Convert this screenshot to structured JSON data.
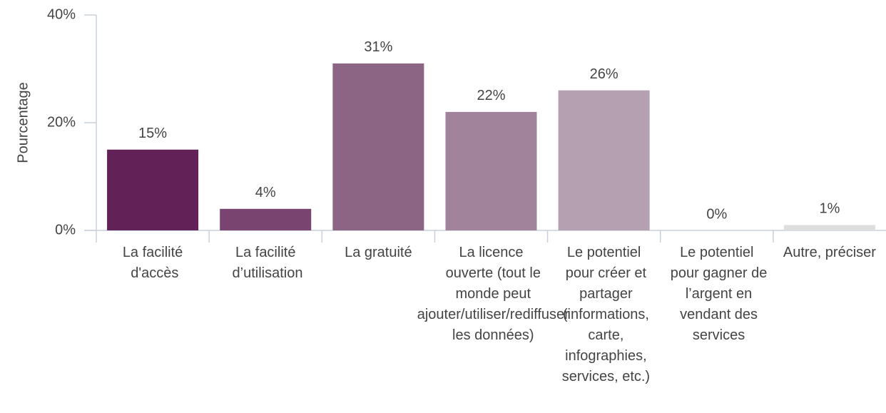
{
  "chart_data": {
    "type": "bar",
    "y_label": "Pourcentage",
    "categories": [
      "La facilité d'accès",
      "La facilité d’utilisation",
      "La gratuité",
      "La licence ouverte (tout le monde peut ajouter/utiliser/rediffuser les données)",
      "Le potentiel pour créer et partager (informations, carte, infographies, services, etc.)",
      "Le potentiel pour gagner de l’argent en vendant des services",
      "Autre, préciser"
    ],
    "values": [
      15,
      4,
      31,
      22,
      26,
      0,
      1
    ],
    "value_labels": [
      "15%",
      "4%",
      "31%",
      "22%",
      "26%",
      "0%",
      "1%"
    ],
    "colors": [
      "#632257",
      "#7a4470",
      "#8c6584",
      "#a2839c",
      "#b5a0b1",
      "#c9bcc6",
      "#dedede"
    ],
    "ylim": [
      0,
      40
    ],
    "yticks": [
      {
        "value": 0,
        "label": "0%"
      },
      {
        "value": 20,
        "label": "20%"
      },
      {
        "value": 40,
        "label": "40%"
      }
    ]
  }
}
